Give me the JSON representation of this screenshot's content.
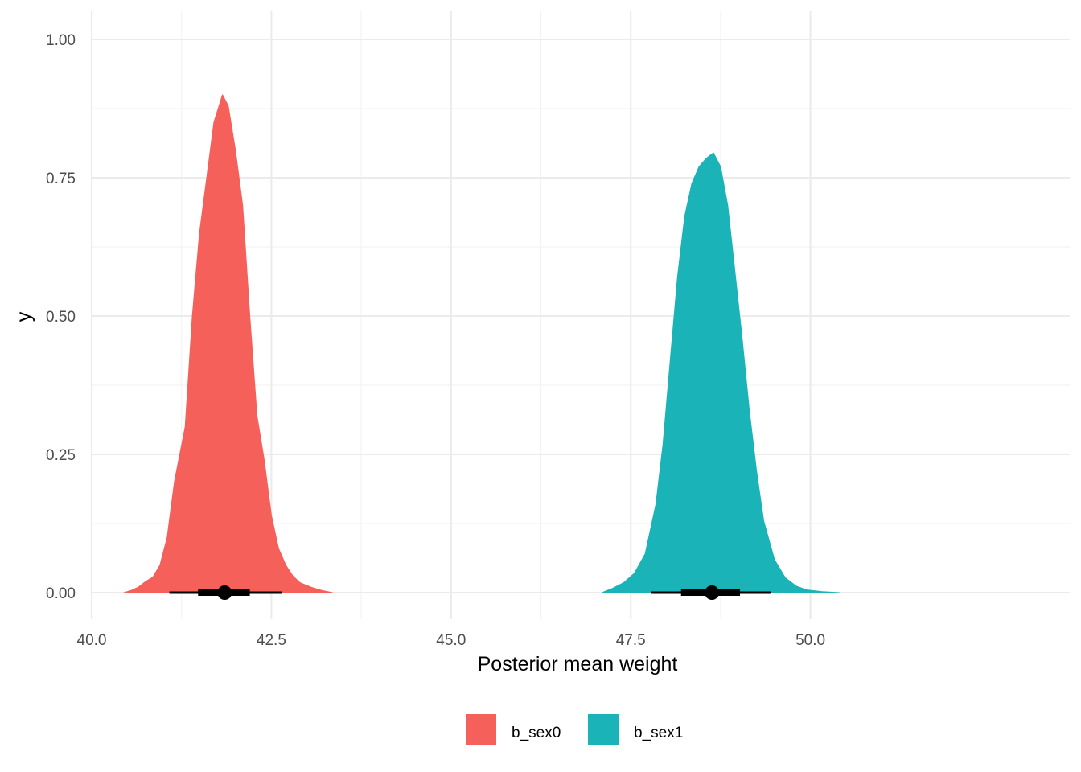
{
  "chart_data": {
    "type": "area",
    "subtype": "half-eye density with point interval",
    "title": "",
    "xlabel": "Posterior mean weight",
    "ylabel": "y",
    "xlim": [
      40.0,
      50.9
    ],
    "ylim": [
      0.0,
      1.05
    ],
    "x_ticks": [
      40.0,
      42.5,
      45.0,
      47.5,
      50.0
    ],
    "x_tick_labels": [
      "40.0",
      "42.5",
      "45.0",
      "47.5",
      "50.0"
    ],
    "y_ticks": [
      0.0,
      0.25,
      0.5,
      0.75,
      1.0
    ],
    "y_tick_labels": [
      "0.00",
      "0.25",
      "0.50",
      "0.75",
      "1.00"
    ],
    "grid": true,
    "legend_position": "bottom",
    "series": [
      {
        "name": "b_sex0",
        "color": "#F5605B",
        "density": [
          [
            40.45,
            0.0
          ],
          [
            40.55,
            0.004
          ],
          [
            40.65,
            0.01
          ],
          [
            40.75,
            0.02
          ],
          [
            40.85,
            0.028
          ],
          [
            40.95,
            0.05
          ],
          [
            41.05,
            0.1
          ],
          [
            41.15,
            0.2
          ],
          [
            41.3,
            0.3
          ],
          [
            41.4,
            0.5
          ],
          [
            41.5,
            0.65
          ],
          [
            41.6,
            0.75
          ],
          [
            41.7,
            0.85
          ],
          [
            41.82,
            0.9
          ],
          [
            41.9,
            0.88
          ],
          [
            42.0,
            0.8
          ],
          [
            42.1,
            0.7
          ],
          [
            42.2,
            0.5
          ],
          [
            42.3,
            0.32
          ],
          [
            42.4,
            0.24
          ],
          [
            42.5,
            0.14
          ],
          [
            42.6,
            0.08
          ],
          [
            42.7,
            0.05
          ],
          [
            42.8,
            0.03
          ],
          [
            42.9,
            0.018
          ],
          [
            43.05,
            0.01
          ],
          [
            43.2,
            0.004
          ],
          [
            43.35,
            0.0
          ]
        ],
        "point": 41.85,
        "interval_66": [
          41.48,
          42.2
        ],
        "interval_95": [
          41.08,
          42.65
        ]
      },
      {
        "name": "b_sex1",
        "color": "#1AB3B7",
        "density": [
          [
            47.1,
            0.0
          ],
          [
            47.25,
            0.008
          ],
          [
            47.4,
            0.018
          ],
          [
            47.55,
            0.035
          ],
          [
            47.7,
            0.07
          ],
          [
            47.85,
            0.16
          ],
          [
            47.95,
            0.27
          ],
          [
            48.05,
            0.42
          ],
          [
            48.15,
            0.57
          ],
          [
            48.25,
            0.68
          ],
          [
            48.35,
            0.74
          ],
          [
            48.45,
            0.77
          ],
          [
            48.55,
            0.785
          ],
          [
            48.65,
            0.795
          ],
          [
            48.75,
            0.77
          ],
          [
            48.85,
            0.7
          ],
          [
            48.95,
            0.58
          ],
          [
            49.05,
            0.46
          ],
          [
            49.15,
            0.33
          ],
          [
            49.25,
            0.22
          ],
          [
            49.35,
            0.13
          ],
          [
            49.5,
            0.06
          ],
          [
            49.65,
            0.027
          ],
          [
            49.8,
            0.012
          ],
          [
            49.95,
            0.005
          ],
          [
            50.15,
            0.002
          ],
          [
            50.4,
            0.0
          ]
        ],
        "point": 48.63,
        "interval_66": [
          48.2,
          49.02
        ],
        "interval_95": [
          47.78,
          49.45
        ]
      }
    ]
  }
}
